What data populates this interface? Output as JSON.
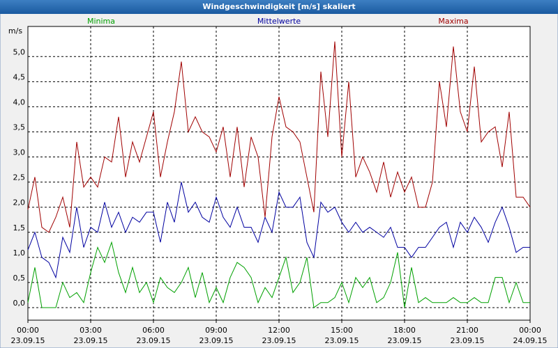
{
  "chart_data": {
    "type": "line",
    "title": "Windgeschwindigkeit [m/s] skaliert",
    "ylabel": "m/s",
    "x": [
      0,
      20,
      40,
      60,
      80,
      100,
      120,
      140,
      160,
      180,
      200,
      220,
      240,
      260,
      280,
      300,
      320,
      340,
      360,
      380,
      400,
      420,
      440,
      460,
      480,
      500,
      520,
      540,
      560,
      580,
      600,
      620,
      640,
      660,
      680,
      700,
      720,
      740,
      760,
      780,
      800,
      820,
      840,
      860,
      880,
      900,
      920,
      940,
      960,
      980,
      1000,
      1020,
      1040,
      1060,
      1080,
      1100,
      1120,
      1140,
      1160,
      1180,
      1200,
      1220,
      1240,
      1260,
      1280,
      1300,
      1320,
      1340,
      1360,
      1380,
      1400,
      1420,
      1440
    ],
    "series": [
      {
        "name": "Minima",
        "color": "#00a000",
        "values": [
          0.1,
          0.8,
          0.0,
          0.0,
          0.0,
          0.5,
          0.2,
          0.3,
          0.1,
          0.7,
          1.2,
          0.9,
          1.3,
          0.7,
          0.3,
          0.8,
          0.3,
          0.5,
          0.1,
          0.6,
          0.4,
          0.3,
          0.5,
          0.8,
          0.2,
          0.7,
          0.1,
          0.4,
          0.1,
          0.6,
          0.9,
          0.8,
          0.6,
          0.1,
          0.4,
          0.2,
          0.6,
          1.0,
          0.3,
          0.5,
          1.0,
          0.0,
          0.1,
          0.1,
          0.2,
          0.5,
          0.1,
          0.6,
          0.4,
          0.6,
          0.1,
          0.2,
          0.5,
          1.1,
          0.0,
          0.8,
          0.1,
          0.2,
          0.1,
          0.1,
          0.1,
          0.2,
          0.1,
          0.1,
          0.2,
          0.1,
          0.1,
          0.6,
          0.6,
          0.1,
          0.5,
          0.1,
          0.1
        ]
      },
      {
        "name": "Mittelwerte",
        "color": "#0000a0",
        "values": [
          1.15,
          1.5,
          1.0,
          0.9,
          0.6,
          1.4,
          1.1,
          2.0,
          1.2,
          1.6,
          1.5,
          2.1,
          1.6,
          1.9,
          1.5,
          1.8,
          1.7,
          1.9,
          1.9,
          1.3,
          2.1,
          1.7,
          2.5,
          1.9,
          2.1,
          1.8,
          1.7,
          2.2,
          1.8,
          1.6,
          2.0,
          1.6,
          1.6,
          1.3,
          1.8,
          1.5,
          2.3,
          2.0,
          2.0,
          2.2,
          1.3,
          1.0,
          2.1,
          1.9,
          2.0,
          1.7,
          1.5,
          1.7,
          1.5,
          1.6,
          1.5,
          1.4,
          1.6,
          1.2,
          1.2,
          1.0,
          1.2,
          1.2,
          1.4,
          1.6,
          1.7,
          1.2,
          1.7,
          1.5,
          1.8,
          1.6,
          1.3,
          1.7,
          2.0,
          1.6,
          1.1,
          1.2,
          1.2
        ]
      },
      {
        "name": "Maxima",
        "color": "#a00000",
        "values": [
          1.95,
          2.6,
          1.6,
          1.5,
          1.8,
          2.2,
          1.6,
          3.3,
          2.4,
          2.6,
          2.4,
          3.0,
          2.9,
          3.8,
          2.6,
          3.3,
          2.9,
          3.4,
          3.9,
          2.6,
          3.3,
          3.9,
          4.9,
          3.5,
          3.8,
          3.5,
          3.4,
          3.1,
          3.6,
          2.6,
          3.6,
          2.4,
          3.4,
          3.0,
          1.8,
          3.4,
          4.2,
          3.6,
          3.5,
          3.3,
          2.6,
          1.9,
          4.7,
          3.4,
          5.3,
          3.0,
          4.5,
          2.6,
          3.0,
          2.7,
          2.3,
          2.9,
          2.2,
          2.7,
          2.3,
          2.6,
          2.0,
          2.0,
          2.5,
          4.5,
          3.6,
          5.2,
          3.9,
          3.5,
          4.8,
          3.3,
          3.5,
          3.6,
          2.8,
          3.9,
          2.2,
          2.2,
          2.0
        ]
      }
    ],
    "xlim": [
      0,
      1440
    ],
    "xticks": [
      {
        "value": 0,
        "label": "00:00"
      },
      {
        "value": 180,
        "label": "03:00"
      },
      {
        "value": 360,
        "label": "06:00"
      },
      {
        "value": 540,
        "label": "09:00"
      },
      {
        "value": 720,
        "label": "12:00"
      },
      {
        "value": 900,
        "label": "15:00"
      },
      {
        "value": 1080,
        "label": "18:00"
      },
      {
        "value": 1260,
        "label": "21:00"
      },
      {
        "value": 1440,
        "label": "00:00"
      }
    ],
    "xtick_dates": [
      "23.09.15",
      "23.09.15",
      "23.09.15",
      "23.09.15",
      "23.09.15",
      "23.09.15",
      "23.09.15",
      "23.09.15",
      "24.09.15"
    ],
    "ylim": [
      -0.25,
      5.6
    ],
    "yticks": [
      {
        "value": 0,
        "label": "0,0"
      },
      {
        "value": 0.5,
        "label": "0,5"
      },
      {
        "value": 1,
        "label": "1,0"
      },
      {
        "value": 1.5,
        "label": "1,5"
      },
      {
        "value": 2,
        "label": "2,0"
      },
      {
        "value": 2.5,
        "label": "2,5"
      },
      {
        "value": 3,
        "label": "3,0"
      },
      {
        "value": 3.5,
        "label": "3,5"
      },
      {
        "value": 4,
        "label": "4,0"
      },
      {
        "value": 4.5,
        "label": "4,5"
      },
      {
        "value": 5,
        "label": "5,0"
      }
    ],
    "grid": true
  }
}
